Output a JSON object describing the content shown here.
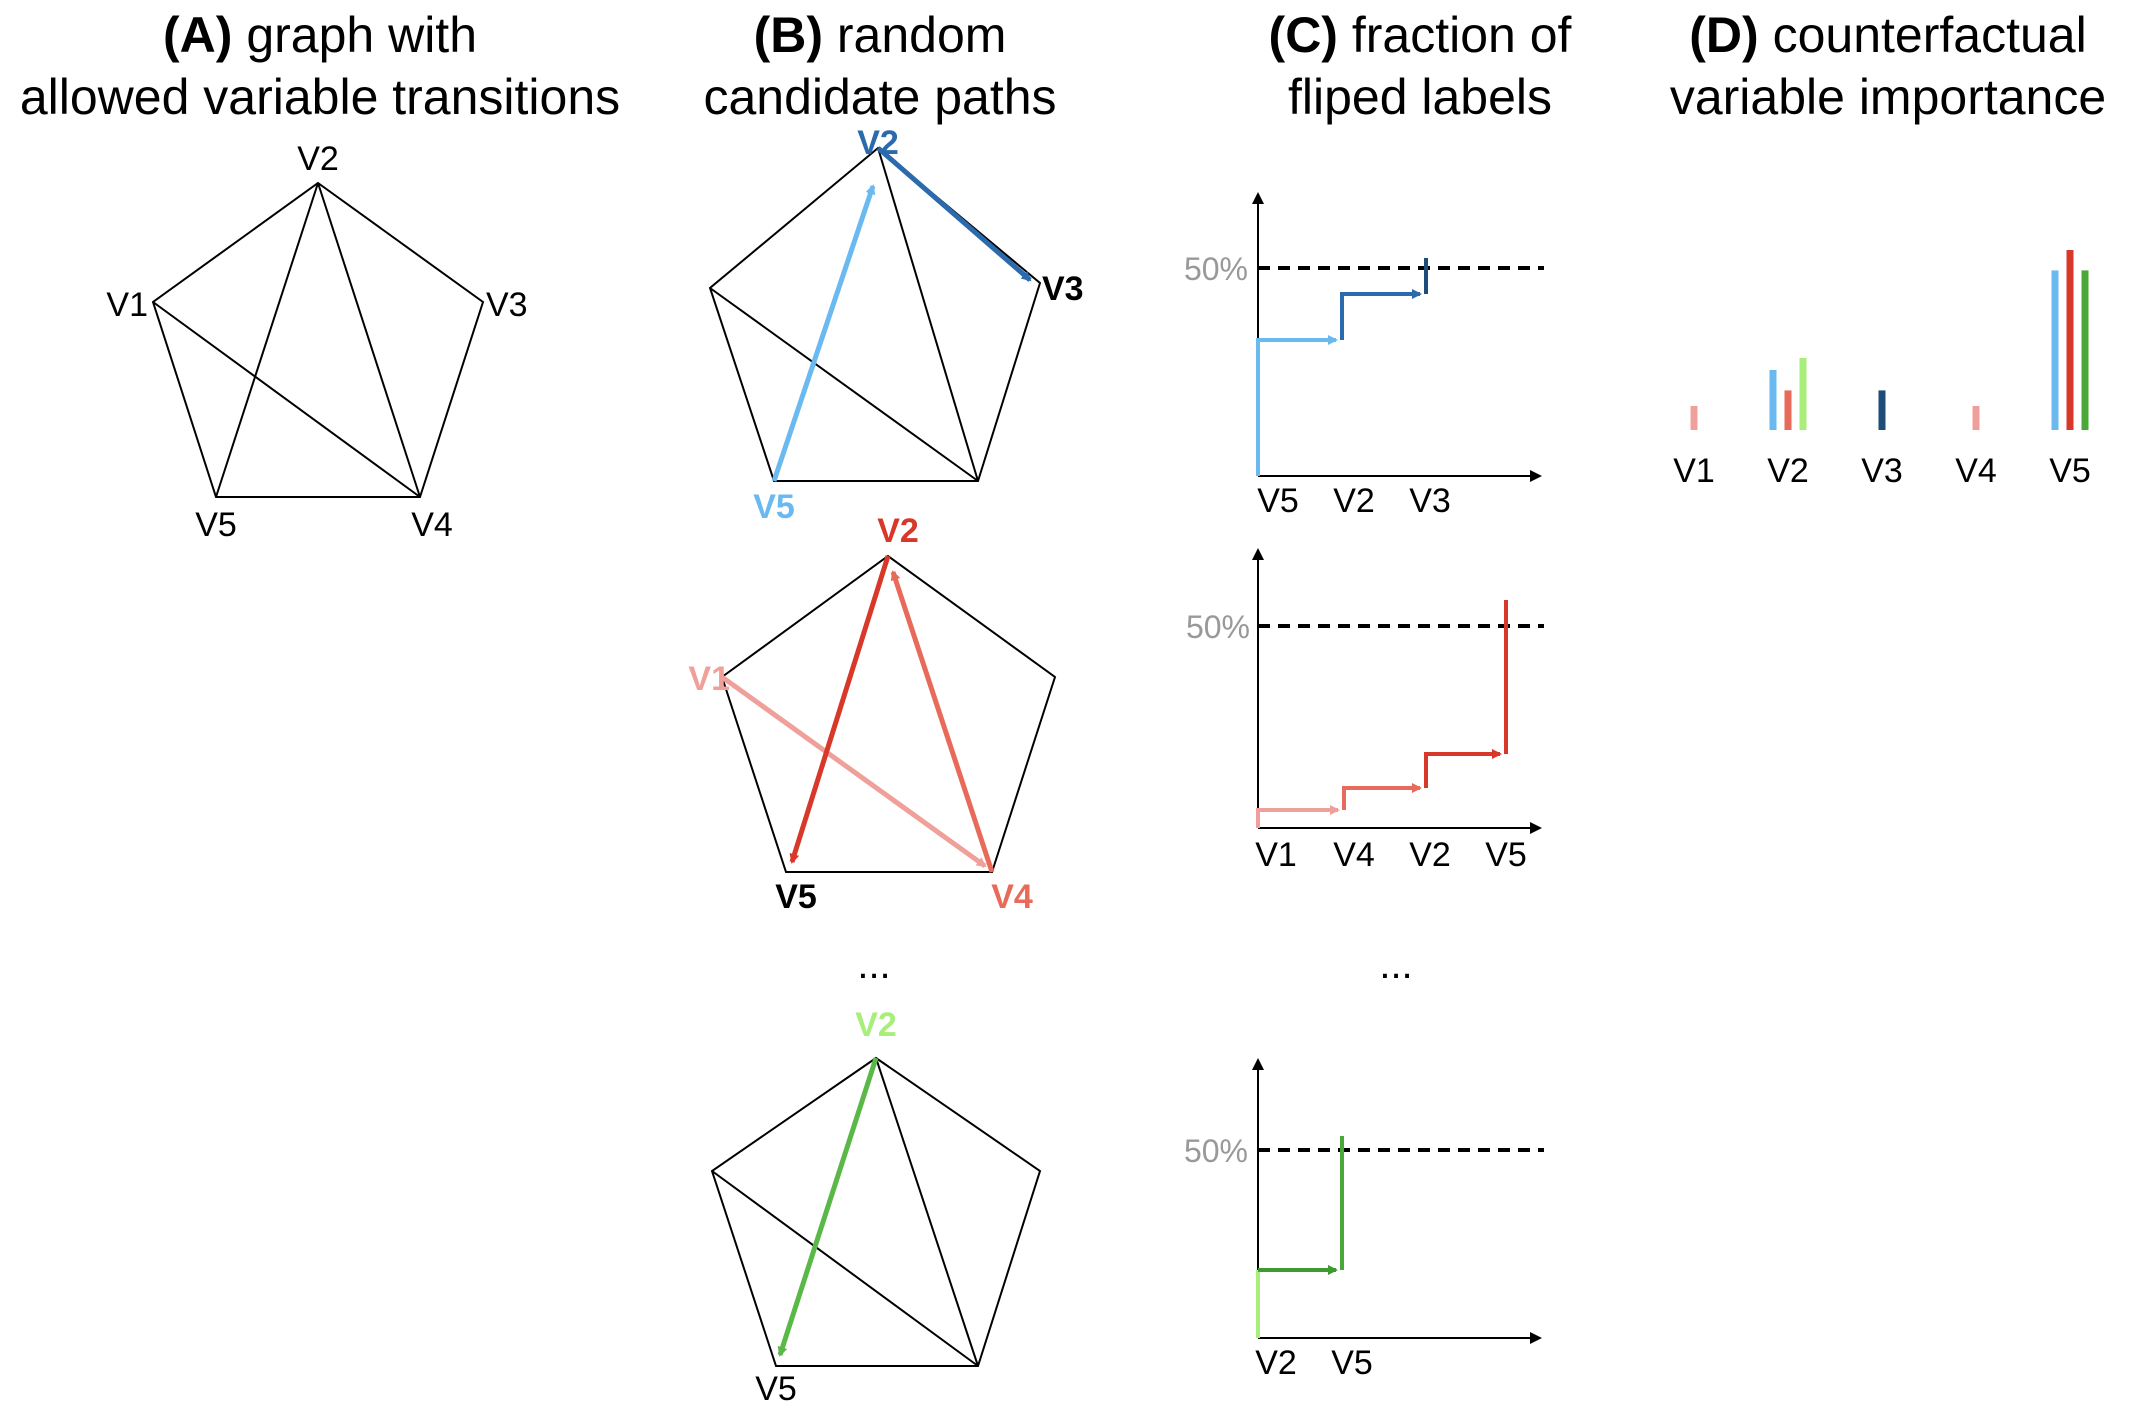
{
  "titles": {
    "a": {
      "letter": "(A)",
      "line1": "graph with",
      "line2": "allowed variable transitions"
    },
    "b": {
      "letter": "(B)",
      "line1": "random",
      "line2": "candidate paths"
    },
    "c": {
      "letter": "(C)",
      "line1": "fraction of",
      "line2": "fliped labels"
    },
    "d": {
      "letter": "(D)",
      "line1": "counterfactual",
      "line2": "variable importance"
    }
  },
  "graph_a": {
    "v1": "V1",
    "v2": "V2",
    "v3": "V3",
    "v4": "V4",
    "v5": "V5"
  },
  "paths": [
    {
      "from_label": "V5",
      "mid_label": "V2",
      "end_label": "V3",
      "colors": [
        "#6ab9f0",
        "#2a6aad"
      ]
    },
    {
      "start_label": "V1",
      "mid_label": "V2",
      "v4_label": "V4",
      "v5_label": "V5",
      "colors": [
        "#f0a09a",
        "#e86a5a",
        "#d8382a"
      ]
    },
    {
      "mid_label": "V2",
      "end_label": "V5",
      "colors": [
        "#a8ee7a",
        "#5ab848"
      ]
    }
  ],
  "ellipsis_b": "...",
  "ellipsis_c": "...",
  "step_charts": [
    {
      "threshold_label": "50%",
      "x_labels": [
        "V5",
        "V2",
        "V3"
      ]
    },
    {
      "threshold_label": "50%",
      "x_labels": [
        "V1",
        "V4",
        "V2",
        "V5"
      ]
    },
    {
      "threshold_label": "50%",
      "x_labels": [
        "V2",
        "V5"
      ]
    }
  ],
  "chart_data": {
    "type": "bar",
    "categories": [
      "V1",
      "V2",
      "V3",
      "V4",
      "V5"
    ],
    "bars": [
      {
        "category": "V1",
        "values": [
          {
            "color": "#f0a09a",
            "value": 0.2
          }
        ]
      },
      {
        "category": "V2",
        "values": [
          {
            "color": "#6ab9f0",
            "value": 0.5
          },
          {
            "color": "#e86a5a",
            "value": 0.33
          },
          {
            "color": "#a8ee7a",
            "value": 0.6
          }
        ]
      },
      {
        "category": "V3",
        "values": [
          {
            "color": "#1f4d7a",
            "value": 0.33
          }
        ]
      },
      {
        "category": "V4",
        "values": [
          {
            "color": "#f0a09a",
            "value": 0.2
          }
        ]
      },
      {
        "category": "V5",
        "values": [
          {
            "color": "#6ab9f0",
            "value": 1.33
          },
          {
            "color": "#d8382a",
            "value": 1.5
          },
          {
            "color": "#4aa838",
            "value": 1.33
          }
        ]
      }
    ]
  }
}
